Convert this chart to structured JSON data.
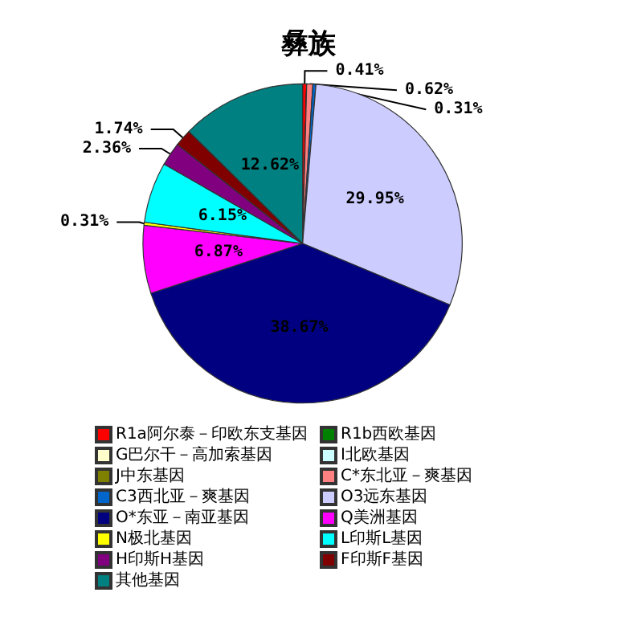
{
  "chart_data": {
    "type": "pie",
    "title": "彝族",
    "categories": [
      "R1a阿尔泰－印欧东支基因",
      "R1b西欧基因",
      "G巴尔干－高加索基因",
      "I北欧基因",
      "J中东基因",
      "C*东北亚－爽基因",
      "C3西北亚－爽基因",
      "O3远东基因",
      "O*东亚－南亚基因",
      "Q美洲基因",
      "N极北基因",
      "L印斯L基因",
      "H印斯H基因",
      "F印斯F基因",
      "其他基因"
    ],
    "values": [
      0.41,
      0,
      0,
      0,
      0,
      0.62,
      0.31,
      29.95,
      38.67,
      6.87,
      0.31,
      6.15,
      2.36,
      1.74,
      12.62
    ],
    "colors": [
      "#ff0000",
      "#008000",
      "#ffffcc",
      "#ccffff",
      "#808000",
      "#ff8080",
      "#0066cc",
      "#ccccff",
      "#000080",
      "#ff00ff",
      "#ffff00",
      "#00ffff",
      "#800080",
      "#800000",
      "#008080"
    ],
    "value_labels": [
      "0.41%",
      null,
      null,
      null,
      null,
      "0.62%",
      "0.31%",
      "29.95%",
      "38.67%",
      "6.87%",
      "0.31%",
      "6.15%",
      "2.36%",
      "1.74%",
      "12.62%"
    ],
    "legend": "bottom"
  }
}
